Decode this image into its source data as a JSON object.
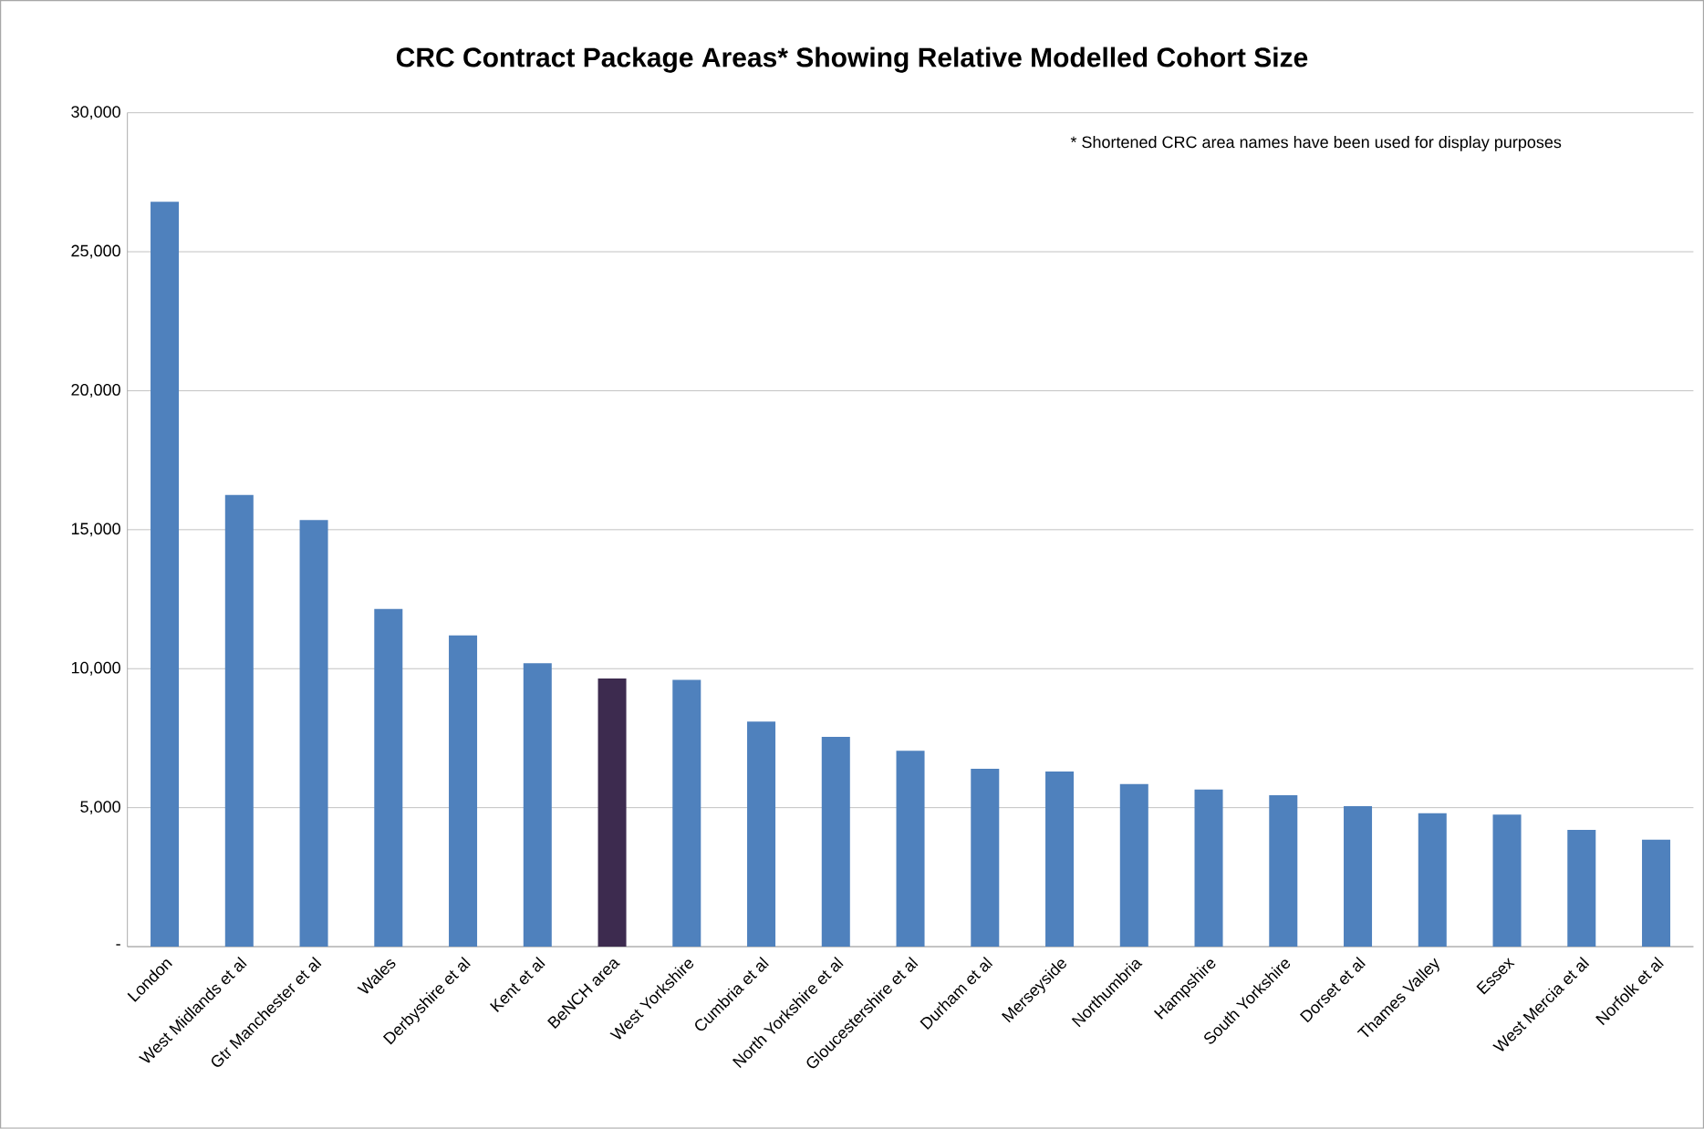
{
  "chart_data": {
    "type": "bar",
    "title": "CRC Contract Package Areas* Showing Relative Modelled Cohort Size",
    "categories": [
      "London",
      "West Midlands et al",
      "Gtr Manchester et al",
      "Wales",
      "Derbyshire et al",
      "Kent et al",
      "BeNCH area",
      "West Yorkshire",
      "Cumbria et al",
      "North Yorkshire et al",
      "Gloucestershire et al",
      "Durham et al",
      "Merseyside",
      "Northumbria",
      "Hampshire",
      "South Yorkshire",
      "Dorset et al",
      "Thames Valley",
      "Essex",
      "West Mercia et al",
      "Norfolk et al"
    ],
    "values": [
      26800,
      16250,
      15350,
      12150,
      11200,
      10200,
      9650,
      9600,
      8100,
      7550,
      7050,
      6400,
      6300,
      5850,
      5650,
      5450,
      5050,
      4800,
      4750,
      4200,
      3850
    ],
    "colors": [
      "#4f81bd",
      "#4f81bd",
      "#4f81bd",
      "#4f81bd",
      "#4f81bd",
      "#4f81bd",
      "#3d2b4f",
      "#4f81bd",
      "#4f81bd",
      "#4f81bd",
      "#4f81bd",
      "#4f81bd",
      "#4f81bd",
      "#4f81bd",
      "#4f81bd",
      "#4f81bd",
      "#4f81bd",
      "#4f81bd",
      "#4f81bd",
      "#4f81bd",
      "#4f81bd"
    ],
    "ylim": [
      0,
      30000
    ],
    "yticks": [
      {
        "value": 0,
        "label": "-"
      },
      {
        "value": 5000,
        "label": "5,000"
      },
      {
        "value": 10000,
        "label": "10,000"
      },
      {
        "value": 15000,
        "label": "15,000"
      },
      {
        "value": 20000,
        "label": "20,000"
      },
      {
        "value": 25000,
        "label": "25,000"
      },
      {
        "value": 30000,
        "label": "30,000"
      }
    ],
    "grid": "y",
    "annotations": [
      "* Shortened CRC area names have been used for display purposes"
    ]
  }
}
